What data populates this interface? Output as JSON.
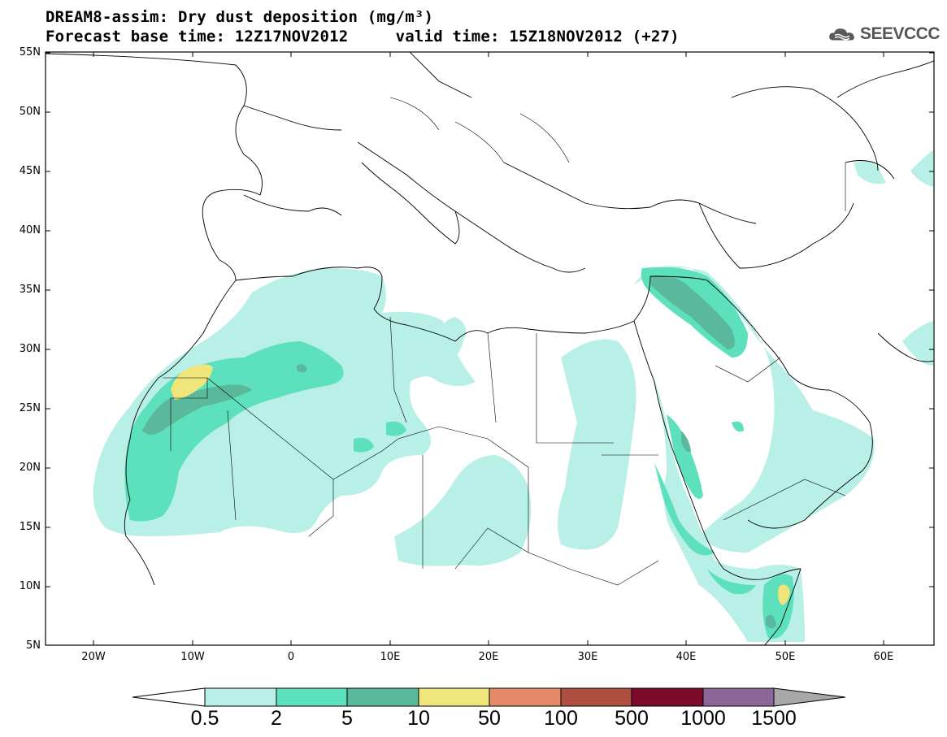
{
  "header": {
    "title": "DREAM8-assim: Dry dust deposition (mg/m³)",
    "subtitle_base": "Forecast base time: 12Z17NOV2012",
    "subtitle_valid": "valid time: 15Z18NOV2012 (+27)",
    "logo_text": "SEEVCCC"
  },
  "map": {
    "lat_labels": [
      "55N",
      "50N",
      "45N",
      "40N",
      "35N",
      "30N",
      "25N",
      "20N",
      "15N",
      "10N",
      "5N"
    ],
    "lon_labels": [
      "20W",
      "10W",
      "0",
      "10E",
      "20E",
      "30E",
      "40E",
      "50E",
      "60E"
    ],
    "background_color": "#ffffff",
    "border_color": "#000000"
  },
  "colorbar": {
    "labels": [
      "0.5",
      "2",
      "5",
      "10",
      "50",
      "100",
      "500",
      "1000",
      "1500"
    ],
    "colors": [
      "#b8efe6",
      "#5de0bc",
      "#5ab89b",
      "#f0e57a",
      "#e48a68",
      "#ae4f40",
      "#7c0a2b",
      "#8c6599",
      "#a8a8a8"
    ]
  }
}
